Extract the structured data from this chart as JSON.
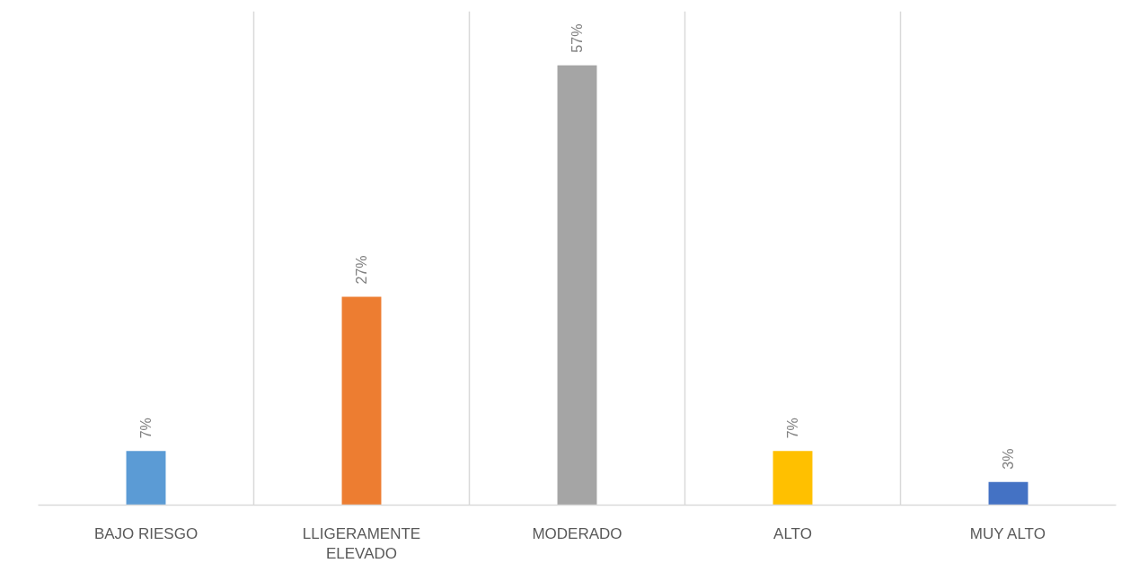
{
  "chart_data": {
    "type": "bar",
    "categories": [
      "BAJO RIESGO",
      "LLIGERAMENTE ELEVADO",
      "MODERADO",
      "ALTO",
      "MUY ALTO"
    ],
    "values": [
      7,
      27,
      57,
      7,
      3
    ],
    "colors": [
      "#5b9bd5",
      "#ed7d31",
      "#a5a5a5",
      "#ffc000",
      "#4472c4"
    ],
    "value_labels": [
      "7%",
      "27%",
      "57%",
      "7%",
      "3%"
    ],
    "ylim": [
      0,
      64
    ],
    "grid": "x",
    "tick_labels": "x"
  }
}
